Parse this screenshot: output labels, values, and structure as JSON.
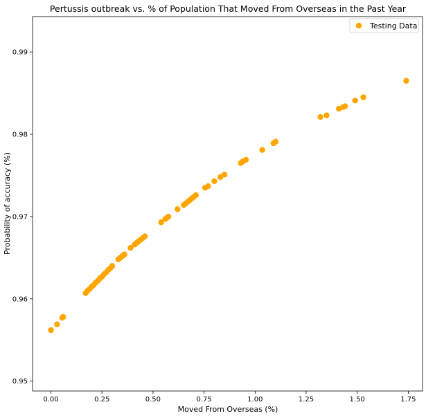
{
  "chart_data": {
    "type": "scatter",
    "title": "Pertussis outbreak vs. % of Population That Moved From Overseas in the Past Year",
    "xlabel": "Moved From Overseas (%)",
    "ylabel": "Probability of accuracy (%)",
    "xlim": [
      -0.09,
      1.82
    ],
    "ylim": [
      0.9488,
      0.9943
    ],
    "xticks": [
      0.0,
      0.25,
      0.5,
      0.75,
      1.0,
      1.25,
      1.5,
      1.75
    ],
    "xtick_labels": [
      "0.00",
      "0.25",
      "0.50",
      "0.75",
      "1.00",
      "1.25",
      "1.50",
      "1.75"
    ],
    "yticks": [
      0.95,
      0.96,
      0.97,
      0.98,
      0.99
    ],
    "ytick_labels": [
      "0.95",
      "0.96",
      "0.97",
      "0.98",
      "0.99"
    ],
    "grid": false,
    "legend_position": "top-right",
    "series": [
      {
        "name": "Testing Data",
        "color": "#ffa500",
        "points": [
          [
            0.0,
            0.9562
          ],
          [
            0.03,
            0.9569
          ],
          [
            0.055,
            0.9577
          ],
          [
            0.06,
            0.9578
          ],
          [
            0.17,
            0.9607
          ],
          [
            0.18,
            0.961
          ],
          [
            0.19,
            0.9612
          ],
          [
            0.2,
            0.9615
          ],
          [
            0.21,
            0.9617
          ],
          [
            0.22,
            0.962
          ],
          [
            0.23,
            0.9622
          ],
          [
            0.24,
            0.9625
          ],
          [
            0.25,
            0.9627
          ],
          [
            0.26,
            0.963
          ],
          [
            0.27,
            0.9632
          ],
          [
            0.28,
            0.9635
          ],
          [
            0.29,
            0.9637
          ],
          [
            0.3,
            0.964
          ],
          [
            0.33,
            0.9648
          ],
          [
            0.34,
            0.965
          ],
          [
            0.35,
            0.9652
          ],
          [
            0.36,
            0.9654
          ],
          [
            0.39,
            0.9662
          ],
          [
            0.41,
            0.9666
          ],
          [
            0.42,
            0.9668
          ],
          [
            0.43,
            0.967
          ],
          [
            0.44,
            0.9672
          ],
          [
            0.45,
            0.9674
          ],
          [
            0.46,
            0.9676
          ],
          [
            0.54,
            0.9693
          ],
          [
            0.56,
            0.9697
          ],
          [
            0.57,
            0.9699
          ],
          [
            0.575,
            0.97
          ],
          [
            0.62,
            0.9709
          ],
          [
            0.65,
            0.9714
          ],
          [
            0.66,
            0.9716
          ],
          [
            0.67,
            0.9718
          ],
          [
            0.68,
            0.972
          ],
          [
            0.69,
            0.9722
          ],
          [
            0.7,
            0.9724
          ],
          [
            0.71,
            0.9726
          ],
          [
            0.755,
            0.9735
          ],
          [
            0.77,
            0.9737
          ],
          [
            0.8,
            0.9743
          ],
          [
            0.83,
            0.9748
          ],
          [
            0.85,
            0.9751
          ],
          [
            0.93,
            0.9765
          ],
          [
            0.94,
            0.9767
          ],
          [
            0.955,
            0.9769
          ],
          [
            1.035,
            0.9781
          ],
          [
            1.09,
            0.9789
          ],
          [
            1.1,
            0.9791
          ],
          [
            1.32,
            0.9821
          ],
          [
            1.35,
            0.9823
          ],
          [
            1.41,
            0.9831
          ],
          [
            1.43,
            0.9833
          ],
          [
            1.44,
            0.9834
          ],
          [
            1.49,
            0.9841
          ],
          [
            1.53,
            0.9845
          ],
          [
            1.74,
            0.9865
          ]
        ]
      }
    ]
  }
}
